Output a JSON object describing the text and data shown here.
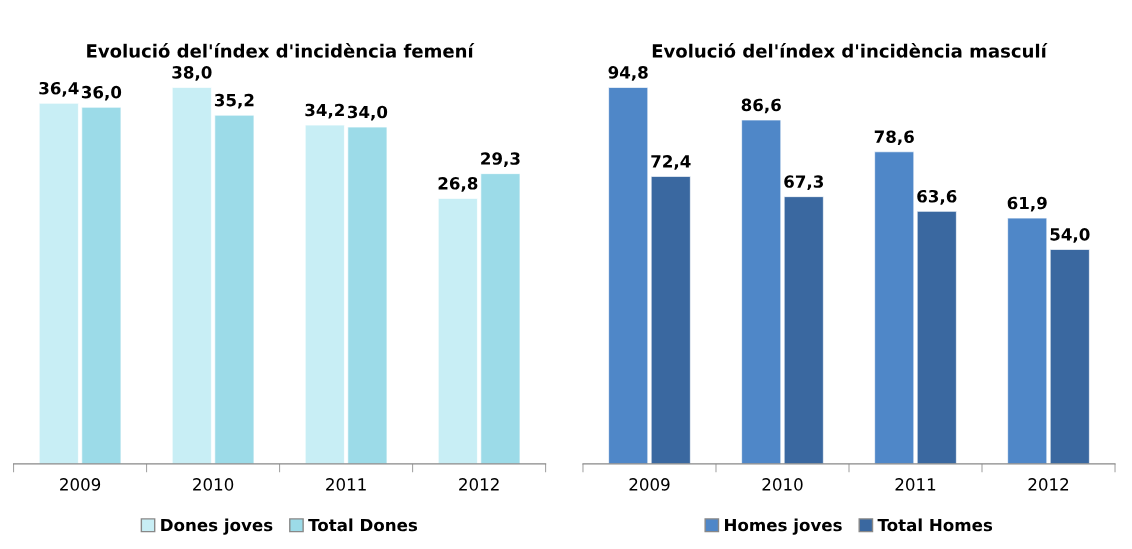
{
  "chart_data": [
    {
      "type": "bar",
      "title": "Evolució del'índex d'incidència femení",
      "categories": [
        "2009",
        "2010",
        "2011",
        "2012"
      ],
      "tick_labels": "x",
      "legend": "bottom",
      "grid": false,
      "series": [
        {
          "name": "Dones joves",
          "color": "#c8eef5",
          "values": [
            36.4,
            38.0,
            34.2,
            26.8
          ],
          "value_labels": [
            "36,4",
            "38,0",
            "34,2",
            "26,8"
          ]
        },
        {
          "name": "Total Dones",
          "color": "#9cdbe8",
          "values": [
            36.0,
            35.2,
            34.0,
            29.3
          ],
          "value_labels": [
            "36,0",
            "35,2",
            "34,0",
            "29,3"
          ]
        }
      ]
    },
    {
      "type": "bar",
      "title": "Evolució del'índex d'incidència masculí",
      "categories": [
        "2009",
        "2010",
        "2011",
        "2012"
      ],
      "tick_labels": "x",
      "legend": "bottom",
      "grid": false,
      "series": [
        {
          "name": "Homes joves",
          "color": "#4f87c8",
          "values": [
            94.8,
            86.6,
            78.6,
            61.9
          ],
          "value_labels": [
            "94,8",
            "86,6",
            "78,6",
            "61,9"
          ]
        },
        {
          "name": "Total Homes",
          "color": "#3a68a0",
          "values": [
            72.4,
            67.3,
            63.6,
            54.0
          ],
          "value_labels": [
            "72,4",
            "67,3",
            "63,6",
            "54,0"
          ]
        }
      ]
    }
  ]
}
